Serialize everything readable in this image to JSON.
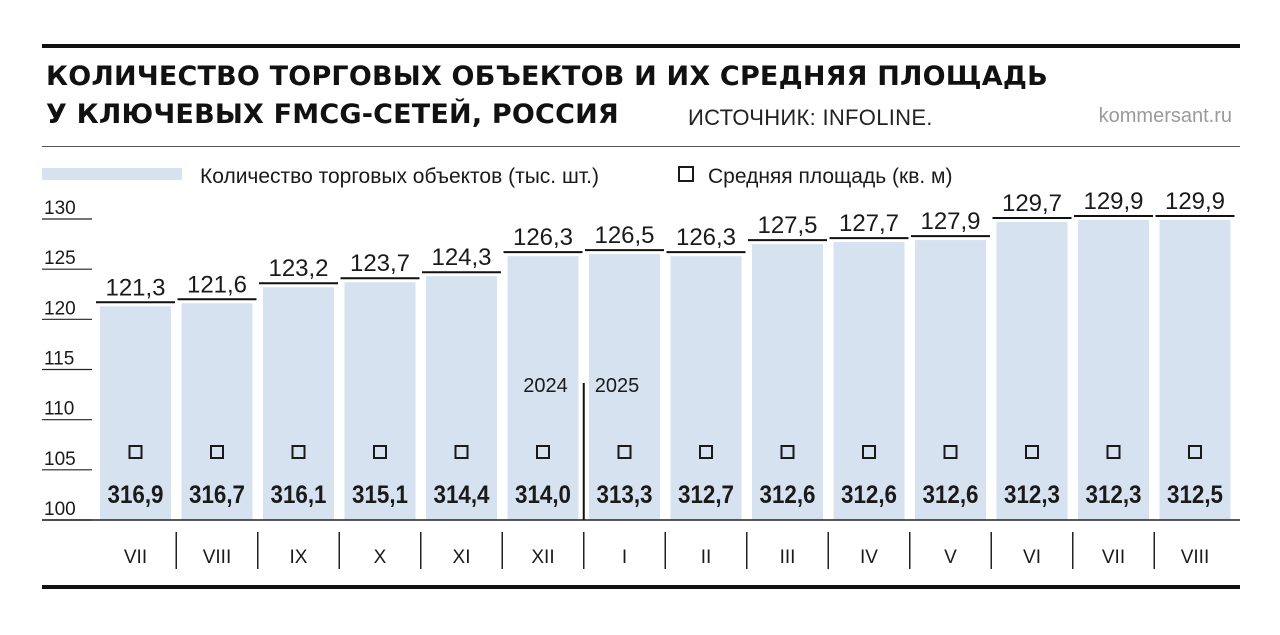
{
  "header": {
    "title_lines": [
      "КОЛИЧЕСТВО ТОРГОВЫХ ОБЪЕКТОВ И ИХ СРЕДНЯЯ ПЛОЩАДЬ",
      "У КЛЮЧЕВЫХ FMCG-СЕТЕЙ, РОССИЯ"
    ],
    "source": "ИСТОЧНИК: INFOLINE.",
    "site": "kommersant.ru"
  },
  "colors": {
    "bar": "#d6e2f0",
    "text": "#1a1a1a",
    "rule": "#111111"
  },
  "chart_data": {
    "type": "bar",
    "categories": [
      "VII",
      "VIII",
      "IX",
      "X",
      "XI",
      "XII",
      "I",
      "II",
      "III",
      "IV",
      "V",
      "VI",
      "VII",
      "VIII"
    ],
    "year_labels": [
      {
        "label": "2024",
        "after_index": 5
      },
      {
        "label": "2025",
        "before_index": 6
      }
    ],
    "legend": {
      "placement": "top-left",
      "bar_label": "Количество торговых объектов (тыс. шт.)",
      "marker_label": "Средняя площадь (кв. м)"
    },
    "y_ticks": [
      100,
      105,
      110,
      115,
      120,
      125,
      130
    ],
    "ylim": [
      100,
      130
    ],
    "series": [
      {
        "name": "Количество торговых объектов (тыс. шт.)",
        "values": [
          121.3,
          121.6,
          123.2,
          123.7,
          124.3,
          126.3,
          126.5,
          126.3,
          127.5,
          127.7,
          127.9,
          129.7,
          129.9,
          129.9
        ],
        "labels": [
          "121,3",
          "121,6",
          "123,2",
          "123,7",
          "124,3",
          "126,3",
          "126,5",
          "126,3",
          "127,5",
          "127,7",
          "127,9",
          "129,7",
          "129,9",
          "129,9"
        ]
      },
      {
        "name": "Средняя площадь (кв. м)",
        "values": [
          316.9,
          316.7,
          316.1,
          315.1,
          314.4,
          314.0,
          313.3,
          312.7,
          312.6,
          312.6,
          312.6,
          312.3,
          312.3,
          312.5
        ],
        "labels": [
          "316,9",
          "316,7",
          "316,1",
          "315,1",
          "314,4",
          "314,0",
          "313,3",
          "312,7",
          "312,6",
          "312,6",
          "312,6",
          "312,3",
          "312,3",
          "312,5"
        ]
      }
    ]
  }
}
